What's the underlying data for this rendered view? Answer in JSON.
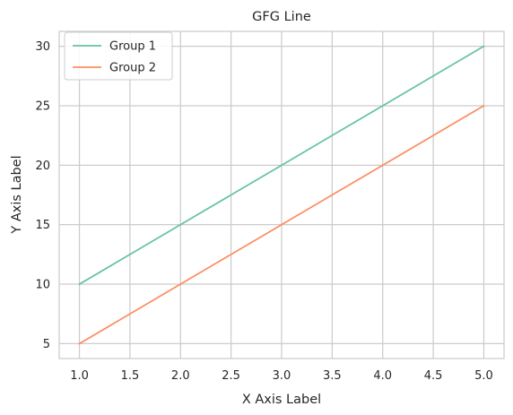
{
  "chart_data": {
    "type": "line",
    "title": "GFG Line",
    "xlabel": "X Axis Label",
    "ylabel": "Y Axis Label",
    "x": [
      1,
      2,
      3,
      4,
      5
    ],
    "series": [
      {
        "name": "Group 1",
        "values": [
          10,
          15,
          20,
          25,
          30
        ],
        "color": "#66c2a5"
      },
      {
        "name": "Group 2",
        "values": [
          5,
          10,
          15,
          20,
          25
        ],
        "color": "#fc8d62"
      }
    ],
    "xlim": [
      0.8,
      5.2
    ],
    "ylim": [
      3.75,
      31.25
    ],
    "xticks": [
      1.0,
      1.5,
      2.0,
      2.5,
      3.0,
      3.5,
      4.0,
      4.5,
      5.0
    ],
    "xtick_labels": [
      "1.0",
      "1.5",
      "2.0",
      "2.5",
      "3.0",
      "3.5",
      "4.0",
      "4.5",
      "5.0"
    ],
    "yticks": [
      5,
      10,
      15,
      20,
      25,
      30
    ],
    "ytick_labels": [
      "5",
      "10",
      "15",
      "20",
      "25",
      "30"
    ],
    "grid": true,
    "legend_position": "top-left"
  }
}
